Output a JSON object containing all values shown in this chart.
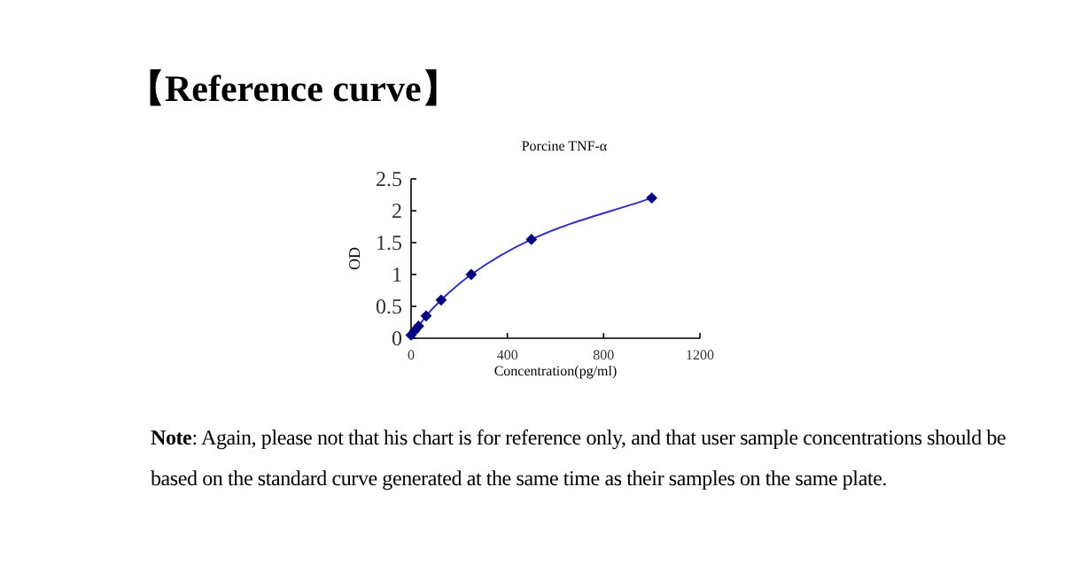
{
  "chart_data": {
    "type": "line",
    "title": "Porcine TNF-α",
    "xlabel": "Concentration(pg/ml)",
    "ylabel": "OD",
    "annotations": [
      "【Reference curve】",
      "**Note**: Again, please not that his chart is for reference only, and that user sample concentrations should be based on the standard curve generated at the same time as their samples on the same plate."
    ],
    "x": [
      0,
      15.6,
      31.25,
      62.5,
      125,
      250,
      500,
      1000
    ],
    "series": [
      {
        "color": "#000080",
        "values": [
          0.05,
          0.12,
          0.19,
          0.35,
          0.6,
          1.0,
          1.55,
          2.2
        ]
      }
    ],
    "xlim": [
      0,
      1200
    ],
    "xticks": [
      0,
      400,
      800,
      1200
    ],
    "ylim": [
      0,
      2.5
    ],
    "yticks": [
      0,
      0.5,
      1,
      1.5,
      2,
      2.5
    ],
    "marker": "diamond",
    "line_style": "solid"
  }
}
